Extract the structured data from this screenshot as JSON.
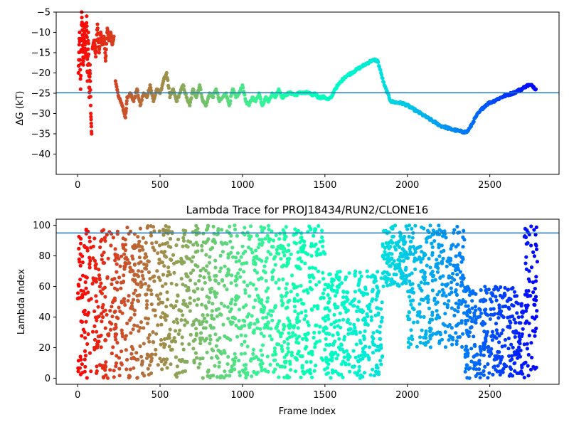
{
  "chart_data": [
    {
      "type": "scatter",
      "title": "",
      "xlabel": "",
      "ylabel": "ΔG (kT)",
      "xlim": [
        -130,
        2920
      ],
      "ylim": [
        -45,
        -5
      ],
      "xticks": [
        0,
        500,
        1000,
        1500,
        2000,
        2500
      ],
      "yticks": [
        -40,
        -35,
        -30,
        -25,
        -20,
        -15,
        -10,
        -5
      ],
      "hline": -24.9,
      "hline_color": "#1f77b4",
      "colormap": "rainbow",
      "marker_size": 2.6,
      "x_max_frame": 2790,
      "segments": [
        {
          "x": [
            5,
            12,
            18,
            25,
            30,
            35,
            40,
            45,
            50,
            55,
            60,
            65,
            70,
            75,
            80,
            85
          ],
          "y": [
            -20,
            -10,
            -24,
            -5,
            -12,
            -18,
            -8,
            -14,
            -16,
            -6,
            -22,
            -10,
            -26,
            -18,
            -30,
            -35
          ]
        },
        {
          "x": [
            90,
            100,
            110,
            120,
            130,
            140,
            150,
            160,
            170,
            180,
            190,
            200,
            210,
            220
          ],
          "y": [
            -14,
            -12,
            -16,
            -8,
            -15,
            -10,
            -13,
            -11,
            -17,
            -9,
            -12,
            -10,
            -13,
            -11
          ]
        },
        {
          "x": [
            230,
            250,
            270,
            290,
            300,
            320,
            340,
            360,
            380,
            400,
            420,
            440,
            460,
            480,
            500,
            520,
            540,
            560,
            580,
            600,
            620,
            640,
            660,
            680,
            700,
            720,
            740,
            760,
            780,
            800,
            820,
            840,
            860,
            880,
            900,
            920,
            940,
            960,
            980,
            1000,
            1020,
            1040,
            1060,
            1080,
            1100,
            1120,
            1140,
            1160,
            1180,
            1200,
            1220,
            1240,
            1260,
            1280,
            1300,
            1320,
            1340,
            1360,
            1380,
            1400,
            1420,
            1440,
            1460,
            1480,
            1500,
            1520,
            1540,
            1560,
            1580,
            1600,
            1620,
            1640,
            1660,
            1680,
            1700,
            1720,
            1740,
            1760,
            1780,
            1800,
            1820,
            1840,
            1860,
            1880,
            1900,
            1920,
            1940,
            1960,
            1980,
            2000,
            2020,
            2040,
            2060,
            2080,
            2100,
            2120,
            2140,
            2160,
            2180,
            2200,
            2220,
            2240,
            2260,
            2280,
            2300,
            2320,
            2340,
            2360,
            2380,
            2400,
            2420,
            2440,
            2460,
            2480,
            2500,
            2520,
            2540,
            2560,
            2580,
            2600,
            2620,
            2640,
            2660,
            2680,
            2700,
            2720,
            2740,
            2760,
            2780
          ],
          "y": [
            -22,
            -26,
            -28,
            -31,
            -26,
            -25,
            -27,
            -24,
            -28,
            -25,
            -26,
            -23,
            -27,
            -24,
            -25,
            -22,
            -20,
            -26,
            -24,
            -27,
            -25,
            -23,
            -26,
            -28,
            -24,
            -26,
            -23,
            -27,
            -28,
            -25,
            -26,
            -24,
            -27,
            -26,
            -25,
            -28,
            -24,
            -26,
            -25,
            -23,
            -27,
            -28,
            -26,
            -27,
            -25,
            -28,
            -26,
            -27,
            -25,
            -26,
            -24,
            -26,
            -25.5,
            -25,
            -25,
            -25.5,
            -25,
            -24.8,
            -25,
            -24.8,
            -25.5,
            -25,
            -26,
            -26,
            -26,
            -26.5,
            -26,
            -24,
            -23,
            -22,
            -21,
            -20.5,
            -20,
            -19.5,
            -19,
            -18.5,
            -18,
            -17.5,
            -17,
            -16.8,
            -17,
            -20,
            -23,
            -25,
            -27,
            -27.2,
            -27.3,
            -27.4,
            -27.6,
            -28,
            -28.5,
            -29,
            -29.5,
            -30,
            -30.5,
            -31,
            -31.5,
            -32,
            -32.5,
            -33,
            -33.2,
            -33.5,
            -33.8,
            -34,
            -34.2,
            -34.4,
            -34.5,
            -34.6,
            -33.5,
            -32,
            -30.5,
            -29.5,
            -28.5,
            -27.8,
            -27.3,
            -27,
            -26.6,
            -26.2,
            -25.8,
            -25.5,
            -25.2,
            -25,
            -24.6,
            -24.2,
            -23.8,
            -23.2,
            -23,
            -23.2,
            -24
          ]
        }
      ]
    },
    {
      "type": "scatter",
      "title": "Lambda Trace for PROJ18434/RUN2/CLONE16",
      "xlabel": "Frame Index",
      "ylabel": "Lambda Index",
      "xlim": [
        -130,
        2920
      ],
      "ylim": [
        -4,
        104
      ],
      "xticks": [
        0,
        500,
        1000,
        1500,
        2000,
        2500
      ],
      "yticks": [
        0,
        20,
        40,
        60,
        80,
        100
      ],
      "hline": 95,
      "hline_color": "#1f77b4",
      "colormap": "rainbow",
      "marker_size": 2.6,
      "x_max_frame": 2790,
      "regions": [
        {
          "x": [
            0,
            250
          ],
          "y": [
            0,
            100
          ]
        },
        {
          "x": [
            250,
            1300
          ],
          "y": [
            0,
            100
          ]
        },
        {
          "x": [
            1300,
            1500
          ],
          "y": [
            0,
            100
          ]
        },
        {
          "x": [
            1500,
            1850
          ],
          "y": [
            0,
            70
          ]
        },
        {
          "x": [
            1850,
            2000
          ],
          "y": [
            60,
            100
          ]
        },
        {
          "x": [
            2000,
            2350
          ],
          "y": [
            20,
            100
          ]
        },
        {
          "x": [
            2350,
            2700
          ],
          "y": [
            0,
            60
          ]
        },
        {
          "x": [
            2700,
            2790
          ],
          "y": [
            0,
            100
          ]
        }
      ]
    }
  ]
}
